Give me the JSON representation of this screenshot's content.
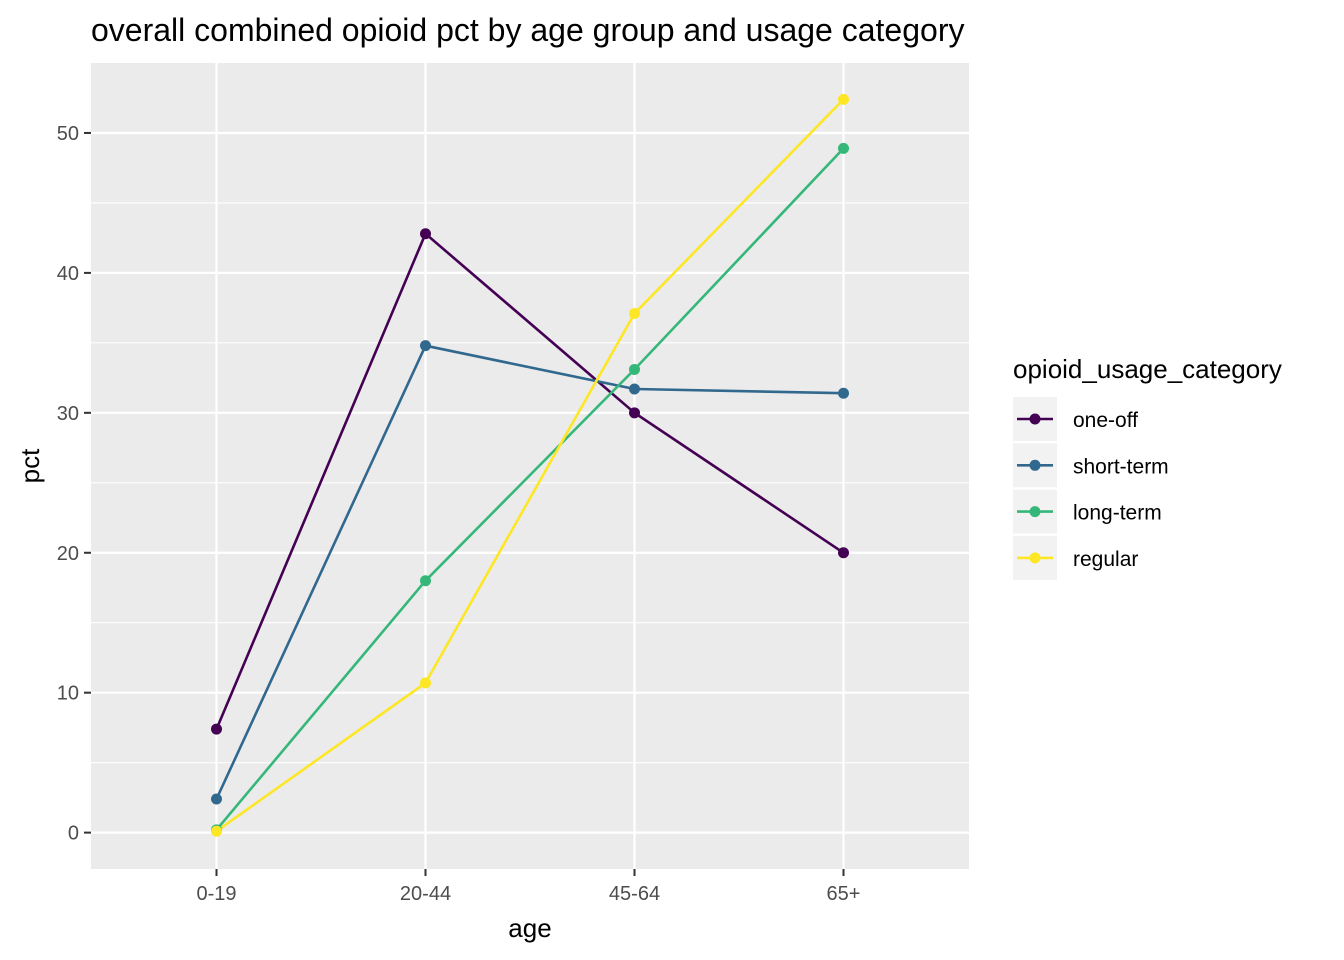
{
  "chart_data": {
    "type": "line",
    "title": "overall combined opioid pct by age group and usage category",
    "xlabel": "age",
    "ylabel": "pct",
    "categories": [
      "0-19",
      "20-44",
      "45-64",
      "65+"
    ],
    "ylim": [
      -2.6,
      55
    ],
    "yticks": [
      0,
      10,
      20,
      30,
      40,
      50
    ],
    "y_tick_labels": [
      "0",
      "10",
      "20",
      "30",
      "40",
      "50"
    ],
    "grid": true,
    "legend_title": "opioid_usage_category",
    "legend_position": "right",
    "series": [
      {
        "name": "one-off",
        "color": "#440154",
        "values": [
          7.4,
          42.8,
          30.0,
          20.0
        ]
      },
      {
        "name": "short-term",
        "color": "#31688E",
        "values": [
          2.4,
          34.8,
          31.7,
          31.4
        ]
      },
      {
        "name": "long-term",
        "color": "#35B779",
        "values": [
          0.2,
          18.0,
          33.1,
          48.9
        ]
      },
      {
        "name": "regular",
        "color": "#FDE725",
        "values": [
          0.1,
          10.7,
          37.1,
          52.4
        ]
      }
    ]
  }
}
